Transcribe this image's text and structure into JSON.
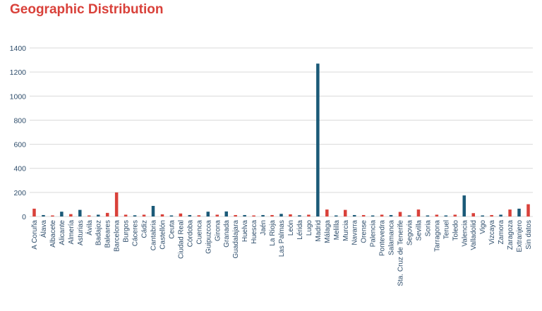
{
  "title": "Geographic Distribution",
  "colors": {
    "accent": "#d9413a",
    "blue": "#1b5a78",
    "red": "#d9413a",
    "grid": "#d9d9d9",
    "text": "#2e4d6b"
  },
  "chart_data": {
    "type": "bar",
    "title": "Geographic Distribution",
    "xlabel": "",
    "ylabel": "",
    "ylim": [
      0,
      1400
    ],
    "yticks": [
      0,
      200,
      400,
      600,
      800,
      1000,
      1200,
      1400
    ],
    "grid": true,
    "legend": "none",
    "categories": [
      "A Coruña",
      "Álava",
      "Albacete",
      "Alicante",
      "Almería",
      "Asturias",
      "Ávila",
      "Badajoz",
      "Baleares",
      "Barcelona",
      "Burgos",
      "Cáceres",
      "Cádiz",
      "Cantabria",
      "Castellón",
      "Ceuta",
      "Ciudad Real",
      "Córdoba",
      "Cuenca",
      "Guipuzcoa",
      "Girona",
      "Granada",
      "Guadalajara",
      "Huelva",
      "Huesca",
      "Jaén",
      "La Rioja",
      "Las Palmas",
      "León",
      "Lérida",
      "Lugo",
      "Madrid",
      "Málaga",
      "Melilla",
      "Murcia",
      "Navarra",
      "Orense",
      "Palencia",
      "Pontevedra",
      "Salamanca",
      "Sta. Cruz de Tenerife",
      "Segovia",
      "Sevilla",
      "Soria",
      "Tarragona",
      "Teruel",
      "Toledo",
      "Valencia",
      "Valladolid",
      "Vigo",
      "Vizcaya",
      "Zamora",
      "Zaragoza",
      "Extranjero",
      "Sin datos"
    ],
    "values": [
      65,
      12,
      5,
      40,
      20,
      55,
      3,
      15,
      30,
      200,
      15,
      10,
      15,
      88,
      18,
      5,
      25,
      12,
      10,
      40,
      15,
      42,
      12,
      12,
      5,
      12,
      12,
      22,
      18,
      10,
      15,
      1270,
      58,
      8,
      55,
      12,
      12,
      5,
      15,
      12,
      38,
      8,
      58,
      3,
      15,
      8,
      15,
      175,
      28,
      5,
      12,
      15,
      58,
      65,
      102
    ],
    "bar_colors": [
      "red",
      "blue",
      "red",
      "blue",
      "red",
      "blue",
      "red",
      "blue",
      "red",
      "red",
      "red",
      "blue",
      "red",
      "blue",
      "red",
      "blue",
      "red",
      "blue",
      "red",
      "blue",
      "red",
      "blue",
      "red",
      "blue",
      "red",
      "blue",
      "red",
      "blue",
      "red",
      "blue",
      "red",
      "blue",
      "red",
      "blue",
      "red",
      "blue",
      "red",
      "blue",
      "red",
      "blue",
      "red",
      "blue",
      "red",
      "blue",
      "red",
      "blue",
      "red",
      "blue",
      "red",
      "blue",
      "red",
      "blue",
      "red",
      "blue",
      "red"
    ]
  }
}
